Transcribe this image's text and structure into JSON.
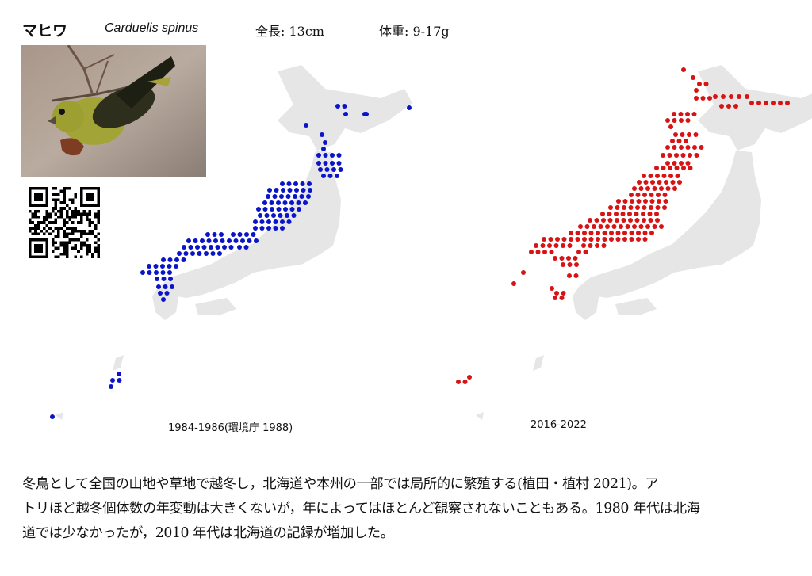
{
  "header": {
    "name": "マヒワ",
    "scientific": "Carduelis spinus",
    "length": "全長: 13cm",
    "weight": "体重: 9-17g"
  },
  "photo": {
    "subject": "siskin-photo"
  },
  "qr": {
    "icon": "qr-code-icon"
  },
  "maps": [
    {
      "caption": "1984-1986(環境庁 1988)",
      "dot_color": "#0a14c8"
    },
    {
      "caption": "2016-2022",
      "dot_color": "#d81313"
    }
  ],
  "colors": {
    "land": "#e6e6e6"
  },
  "description": [
    "冬鳥として全国の山地や草地で越冬し，北海道や本州の一部では局所的に繁殖する(植田・植村 2021)。ア",
    "トリほど越冬個体数の年変動は大きくないが，年によってはほとんど観察されないこともある。1980 年代は北海",
    "道では少なかったが，2010 年代は北海道の記録が増加した。"
  ]
}
